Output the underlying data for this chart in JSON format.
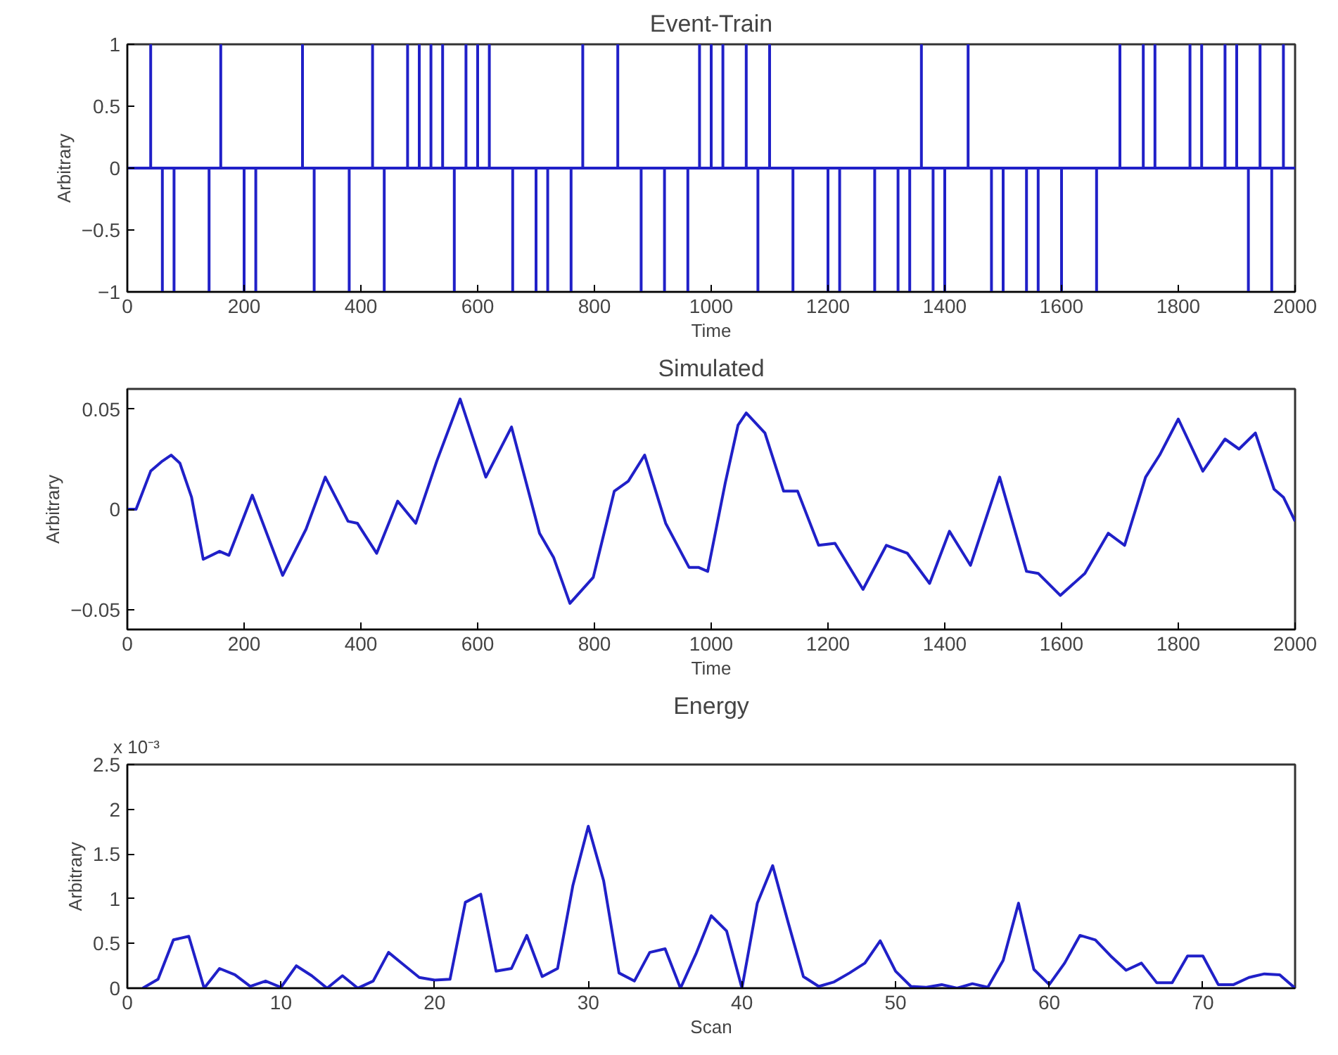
{
  "chart_data": [
    {
      "type": "line",
      "title": "Event-Train",
      "xlabel": "Time",
      "ylabel": "Arbitrary",
      "line_style": "solid",
      "xlim": [
        0,
        2000
      ],
      "xticks": [
        0,
        200,
        400,
        600,
        800,
        1000,
        1200,
        1400,
        1600,
        1800,
        2000
      ],
      "ylim": [
        -1,
        1
      ],
      "yticks": [
        -1,
        -0.5,
        0,
        0.5,
        1
      ],
      "grid": false,
      "series": [
        {
          "color": "#2020c8",
          "x": [
            0,
            40,
            40,
            40,
            60,
            60,
            60,
            80,
            80,
            80,
            140,
            140,
            140,
            160,
            160,
            160,
            200,
            200,
            200,
            220,
            220,
            220,
            300,
            300,
            300,
            320,
            320,
            320,
            380,
            380,
            380,
            420,
            420,
            420,
            440,
            440,
            440,
            480,
            480,
            480,
            500,
            500,
            500,
            520,
            520,
            520,
            540,
            540,
            540,
            560,
            560,
            560,
            580,
            580,
            580,
            600,
            600,
            600,
            620,
            620,
            620,
            660,
            660,
            660,
            700,
            700,
            700,
            720,
            720,
            720,
            760,
            760,
            760,
            780,
            780,
            780,
            840,
            840,
            840,
            880,
            880,
            880,
            920,
            920,
            920,
            960,
            960,
            960,
            980,
            980,
            980,
            1000,
            1000,
            1000,
            1020,
            1020,
            1020,
            1060,
            1060,
            1060,
            1080,
            1080,
            1080,
            1100,
            1100,
            1100,
            1140,
            1140,
            1140,
            1200,
            1200,
            1200,
            1220,
            1220,
            1220,
            1280,
            1280,
            1280,
            1320,
            1320,
            1320,
            1340,
            1340,
            1340,
            1360,
            1360,
            1360,
            1380,
            1380,
            1380,
            1400,
            1400,
            1400,
            1440,
            1440,
            1440,
            1480,
            1480,
            1480,
            1500,
            1500,
            1500,
            1540,
            1540,
            1540,
            1560,
            1560,
            1560,
            1600,
            1600,
            1600,
            1660,
            1660,
            1660,
            1700,
            1700,
            1700,
            1740,
            1740,
            1740,
            1760,
            1760,
            1760,
            1820,
            1820,
            1820,
            1840,
            1840,
            1840,
            1880,
            1880,
            1880,
            1900,
            1900,
            1900,
            1920,
            1920,
            1920,
            1940,
            1940,
            1940,
            1960,
            1960,
            1960,
            1980,
            1980,
            1980,
            2000
          ],
          "values": [
            0,
            0,
            1,
            0,
            0,
            -1,
            0,
            0,
            -1,
            0,
            0,
            -1,
            0,
            0,
            1,
            0,
            0,
            -1,
            0,
            0,
            -1,
            0,
            0,
            1,
            0,
            0,
            -1,
            0,
            0,
            -1,
            0,
            0,
            1,
            0,
            0,
            -1,
            0,
            0,
            1,
            0,
            0,
            1,
            0,
            0,
            1,
            0,
            0,
            1,
            0,
            0,
            -1,
            0,
            0,
            1,
            0,
            0,
            1,
            0,
            0,
            1,
            0,
            0,
            -1,
            0,
            0,
            -1,
            0,
            0,
            -1,
            0,
            0,
            -1,
            0,
            0,
            1,
            0,
            0,
            1,
            0,
            0,
            -1,
            0,
            0,
            -1,
            0,
            0,
            -1,
            0,
            0,
            1,
            0,
            0,
            1,
            0,
            0,
            1,
            0,
            0,
            1,
            0,
            0,
            -1,
            0,
            0,
            1,
            0,
            0,
            -1,
            0,
            0,
            -1,
            0,
            0,
            -1,
            0,
            0,
            -1,
            0,
            0,
            -1,
            0,
            0,
            -1,
            0,
            0,
            1,
            0,
            0,
            -1,
            0,
            0,
            -1,
            0,
            0,
            1,
            0,
            0,
            -1,
            0,
            0,
            -1,
            0,
            0,
            -1,
            0,
            0,
            -1,
            0,
            0,
            -1,
            0,
            0,
            -1,
            0,
            0,
            1,
            0,
            0,
            1,
            0,
            0,
            1,
            0,
            0,
            1,
            0,
            0,
            1,
            0,
            0,
            1,
            0,
            0,
            1,
            0,
            0,
            -1,
            0,
            0,
            1,
            0,
            0,
            -1,
            0,
            0,
            1,
            0,
            0
          ]
        }
      ]
    },
    {
      "type": "line",
      "title": "Simulated",
      "xlabel": "Time",
      "ylabel": "Arbitrary",
      "line_style": "solid",
      "xlim": [
        0,
        2000
      ],
      "xticks": [
        0,
        200,
        400,
        600,
        800,
        1000,
        1200,
        1400,
        1600,
        1800,
        2000
      ],
      "ylim": [
        -0.06,
        0.06
      ],
      "yticks": [
        -0.05,
        0,
        0.05
      ],
      "grid": false,
      "series": [
        {
          "color": "#2020c8",
          "x": [
            0,
            15,
            40,
            60,
            75,
            90,
            110,
            130,
            158,
            174,
            214,
            266,
            306,
            339,
            378,
            394,
            427,
            463,
            494,
            530,
            570,
            614,
            658,
            706,
            730,
            758,
            798,
            834,
            858,
            886,
            922,
            962,
            978,
            994,
            1024,
            1046,
            1060,
            1092,
            1124,
            1148,
            1184,
            1212,
            1260,
            1300,
            1336,
            1374,
            1408,
            1444,
            1494,
            1540,
            1560,
            1598,
            1640,
            1680,
            1708,
            1744,
            1768,
            1800,
            1842,
            1880,
            1904,
            1932,
            1964,
            1980,
            2000
          ],
          "values": [
            0,
            0,
            0.019,
            0.024,
            0.027,
            0.023,
            0.006,
            -0.025,
            -0.021,
            -0.023,
            0.007,
            -0.033,
            -0.01,
            0.016,
            -0.006,
            -0.007,
            -0.022,
            0.004,
            -0.007,
            0.024,
            0.055,
            0.016,
            0.041,
            -0.012,
            -0.024,
            -0.047,
            -0.034,
            0.009,
            0.014,
            0.027,
            -0.007,
            -0.029,
            -0.029,
            -0.031,
            0.013,
            0.042,
            0.048,
            0.038,
            0.009,
            0.009,
            -0.018,
            -0.017,
            -0.04,
            -0.018,
            -0.022,
            -0.037,
            -0.011,
            -0.028,
            0.016,
            -0.031,
            -0.032,
            -0.043,
            -0.032,
            -0.012,
            -0.018,
            0.016,
            0.027,
            0.045,
            0.019,
            0.035,
            0.03,
            0.038,
            0.01,
            0.006,
            -0.006
          ]
        }
      ]
    },
    {
      "type": "line",
      "title": "Energy",
      "xlabel": "Scan",
      "ylabel": "Arbitrary",
      "line_style": "solid",
      "annotations": [
        "x 10⁻³"
      ],
      "xlim": [
        0,
        76
      ],
      "xticks": [
        0,
        10,
        20,
        30,
        40,
        50,
        60,
        70
      ],
      "ylim": [
        0,
        2.5
      ],
      "yticks": [
        0,
        0.5,
        1,
        1.5,
        2,
        2.5
      ],
      "grid": false,
      "series": [
        {
          "color": "#2020c8",
          "x": [
            1,
            2,
            3,
            4,
            5,
            6,
            7,
            8,
            9,
            10,
            11,
            12,
            13,
            14,
            15,
            16,
            17,
            18,
            19,
            20,
            21,
            22,
            23,
            24,
            25,
            26,
            27,
            28,
            29,
            30,
            31,
            32,
            33,
            34,
            35,
            36,
            37,
            38,
            39,
            40,
            41,
            42,
            43,
            44,
            45,
            46,
            47,
            48,
            49,
            50,
            51,
            52,
            53,
            54,
            55,
            56,
            57,
            58,
            59,
            60,
            61,
            62,
            63,
            64,
            65,
            66,
            67,
            68,
            69,
            70,
            71,
            72,
            73,
            74,
            75,
            76
          ],
          "values": [
            0,
            0.1,
            0.54,
            0.58,
            0,
            0.22,
            0.15,
            0.02,
            0.08,
            0.01,
            0.25,
            0.14,
            0,
            0.14,
            0,
            0.08,
            0.4,
            0.26,
            0.12,
            0.09,
            0.1,
            0.96,
            1.05,
            0.19,
            0.22,
            0.59,
            0.13,
            0.22,
            1.15,
            1.81,
            1.2,
            0.17,
            0.08,
            0.4,
            0.44,
            0,
            0.38,
            0.81,
            0.64,
            0,
            0.95,
            1.37,
            0.74,
            0.13,
            0.02,
            0.07,
            0.17,
            0.28,
            0.53,
            0.19,
            0.02,
            0.01,
            0.04,
            0,
            0.05,
            0.01,
            0.31,
            0.95,
            0.21,
            0.04,
            0.28,
            0.59,
            0.54,
            0.36,
            0.2,
            0.28,
            0.06,
            0.06,
            0.36,
            0.36,
            0.04,
            0.04,
            0.12,
            0.16,
            0.15,
            0
          ]
        }
      ]
    }
  ]
}
